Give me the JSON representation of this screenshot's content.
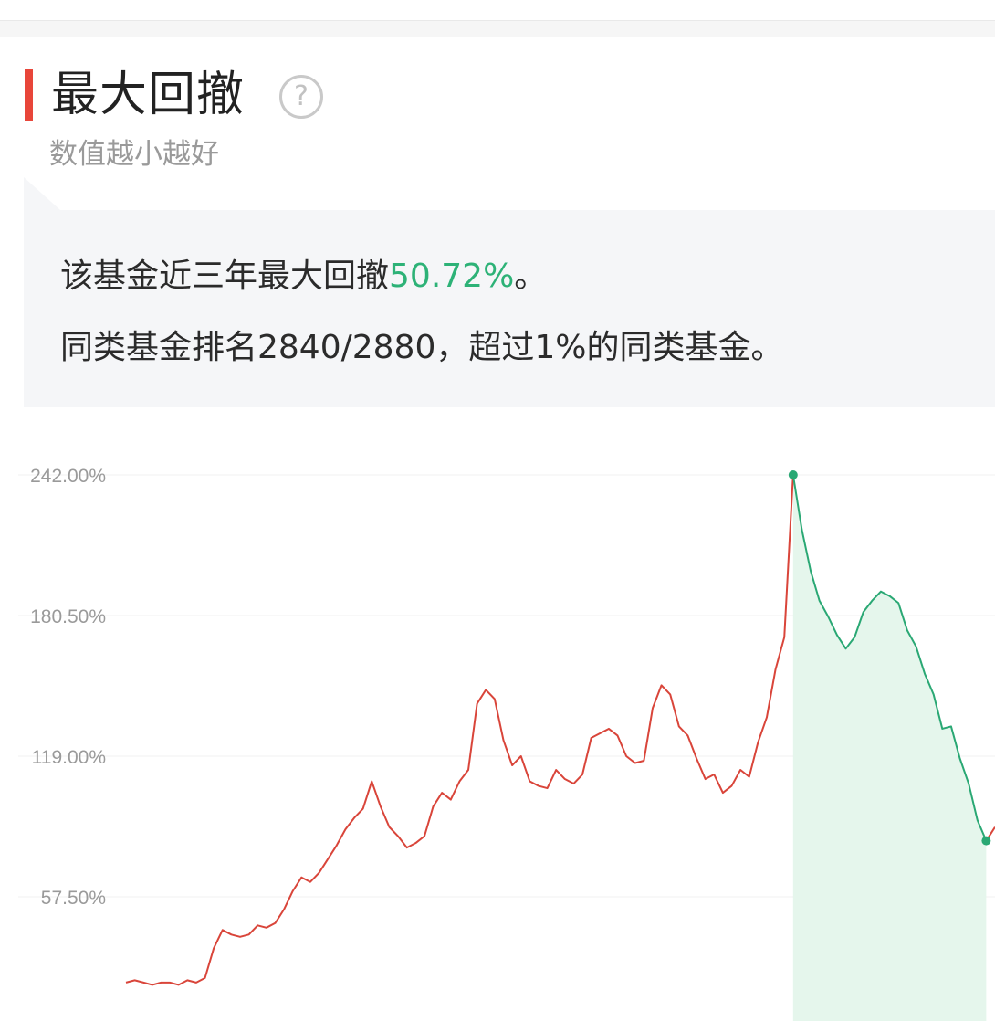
{
  "header": {
    "title": "最大回撤",
    "help_icon": "question-circle-icon",
    "subtitle": "数值越小越好"
  },
  "summary": {
    "line1_prefix": "该基金近三年最大回撤",
    "line1_value": "50.72%",
    "line1_suffix": "。",
    "line2": "同类基金排名2840/2880，超过1%的同类基金。"
  },
  "colors": {
    "accent": "#e8463a",
    "up_line": "#d9453a",
    "drawdown_line": "#2aa874",
    "drawdown_fill": "#e5f6ec",
    "highlight_text": "#2db277"
  },
  "chart_data": {
    "type": "line",
    "title": "",
    "xlabel": "",
    "ylabel": "",
    "yticks": [
      "242.00%",
      "180.50%",
      "119.00%",
      "57.50%"
    ],
    "ytick_values": [
      242.0,
      180.5,
      119.0,
      57.5
    ],
    "ylim": [
      15,
      245
    ],
    "x_count": 100,
    "grid": true,
    "peak_index": 76,
    "trough_index": 98,
    "series": [
      {
        "values": [
          20,
          21,
          20,
          19,
          20,
          20,
          19,
          21,
          20,
          22,
          35,
          43,
          41,
          40,
          41,
          45,
          44,
          46,
          52,
          60,
          66,
          64,
          68,
          74,
          80,
          87,
          92,
          96,
          108,
          97,
          88,
          84,
          79,
          81,
          84,
          97,
          103,
          100,
          108,
          113,
          142,
          148,
          144,
          126,
          115,
          119,
          108,
          106,
          105,
          113,
          109,
          107,
          111,
          127,
          129,
          131,
          128,
          119,
          116,
          117,
          140,
          150,
          146,
          132,
          128,
          118,
          109,
          111,
          103,
          106,
          113,
          110,
          125,
          136,
          157,
          171,
          242,
          218,
          200,
          187,
          180,
          172,
          166,
          171,
          182,
          187,
          191,
          189,
          186,
          174,
          167,
          155,
          146,
          131,
          132,
          118,
          107,
          91,
          82,
          88
        ]
      }
    ]
  }
}
